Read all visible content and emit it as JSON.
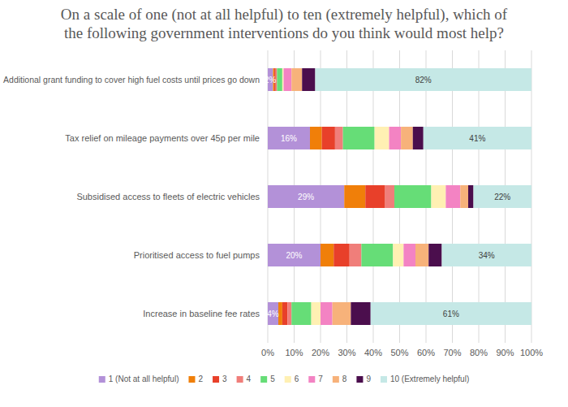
{
  "chart_data": {
    "type": "bar",
    "orientation": "horizontal",
    "stacked": true,
    "data_labels": true,
    "grid": true,
    "legend": "bottom",
    "title": "On a scale of one (not at all helpful) to ten (extremely helpful), which of the following government interventions do you think would most help?",
    "categories": [
      "Additional grant funding to cover high fuel costs until prices go down",
      "Tax relief on mileage payments over 45p per mile",
      "Subsidised access to fleets of electric vehicles",
      "Prioritised access to fuel pumps",
      "Increase in baseline fee rates"
    ],
    "xlim": [
      0,
      100
    ],
    "xticks": [
      {
        "value": 0,
        "label": "0%"
      },
      {
        "value": 10,
        "label": "10%"
      },
      {
        "value": 20,
        "label": "20%"
      },
      {
        "value": 30,
        "label": "30%"
      },
      {
        "value": 40,
        "label": "40%"
      },
      {
        "value": 50,
        "label": "50%"
      },
      {
        "value": 60,
        "label": "60%"
      },
      {
        "value": 70,
        "label": "70%"
      },
      {
        "value": 80,
        "label": "80%"
      },
      {
        "value": 90,
        "label": "90%"
      },
      {
        "value": 100,
        "label": "100%"
      }
    ],
    "series": [
      {
        "name": "1 (Not at all helpful)",
        "color": "#b391d8",
        "values": [
          2,
          16,
          29,
          20,
          4
        ],
        "value_labels": [
          "2%",
          "16%",
          "29%",
          "20%",
          "4%"
        ]
      },
      {
        "name": "2",
        "color": "#f07f09",
        "values": [
          0.5,
          4.5,
          8,
          5,
          1.5
        ]
      },
      {
        "name": "3",
        "color": "#e8402a",
        "values": [
          0.5,
          5,
          7.5,
          6,
          2
        ]
      },
      {
        "name": "4",
        "color": "#f07e7a",
        "values": [
          0.5,
          3,
          3.5,
          4.5,
          1.5
        ]
      },
      {
        "name": "5",
        "color": "#66dd77",
        "values": [
          2,
          12,
          14,
          12,
          7.5
        ]
      },
      {
        "name": "6",
        "color": "#fff0b3",
        "values": [
          0.5,
          5.5,
          5.5,
          4,
          3.5
        ]
      },
      {
        "name": "7",
        "color": "#f383c3",
        "values": [
          3,
          4.5,
          5.5,
          4.5,
          4.5
        ]
      },
      {
        "name": "8",
        "color": "#f7b27a",
        "values": [
          4,
          4.5,
          3,
          5,
          7
        ]
      },
      {
        "name": "9",
        "color": "#4b0e4d",
        "values": [
          5,
          4,
          2,
          5,
          7.5
        ]
      },
      {
        "name": "10 (Extremely helpful)",
        "color": "#c5e8e6",
        "values": [
          82,
          41,
          22,
          34,
          61
        ],
        "value_labels": [
          "82%",
          "41%",
          "22%",
          "34%",
          "61%"
        ]
      }
    ]
  }
}
